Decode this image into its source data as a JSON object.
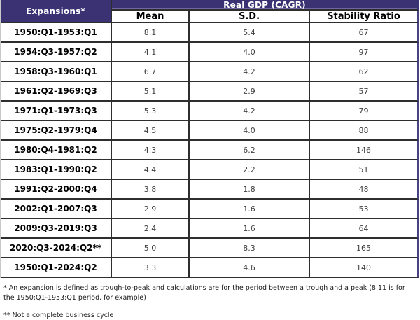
{
  "table": {
    "corner_header": "Expansions*",
    "group_header": "Real GDP (CAGR)",
    "columns": [
      "Mean",
      "S.D.",
      "Stability Ratio"
    ],
    "rows": [
      {
        "period": "1950:Q1-1953:Q1",
        "mean": "8.1",
        "sd": "5.4",
        "stability": "67"
      },
      {
        "period": "1954:Q3-1957:Q2",
        "mean": "4.1",
        "sd": "4.0",
        "stability": "97"
      },
      {
        "period": "1958:Q3-1960:Q1",
        "mean": "6.7",
        "sd": "4.2",
        "stability": "62"
      },
      {
        "period": "1961:Q2-1969:Q3",
        "mean": "5.1",
        "sd": "2.9",
        "stability": "57"
      },
      {
        "period": "1971:Q1-1973:Q3",
        "mean": "5.3",
        "sd": "4.2",
        "stability": "79"
      },
      {
        "period": "1975:Q2-1979:Q4",
        "mean": "4.5",
        "sd": "4.0",
        "stability": "88"
      },
      {
        "period": "1980:Q4-1981:Q2",
        "mean": "4.3",
        "sd": "6.2",
        "stability": "146"
      },
      {
        "period": "1983:Q1-1990:Q2",
        "mean": "4.4",
        "sd": "2.2",
        "stability": "51"
      },
      {
        "period": "1991:Q2-2000:Q4",
        "mean": "3.8",
        "sd": "1.8",
        "stability": "48"
      },
      {
        "period": "2002:Q1-2007:Q3",
        "mean": "2.9",
        "sd": "1.6",
        "stability": "53"
      },
      {
        "period": "2009:Q3-2019:Q3",
        "mean": "2.4",
        "sd": "1.6",
        "stability": "64"
      },
      {
        "period": "2020:Q3-2024:Q2**",
        "mean": "5.0",
        "sd": "8.3",
        "stability": "165"
      },
      {
        "period": "1950:Q1-2024:Q2",
        "mean": "3.3",
        "sd": "4.6",
        "stability": "140"
      }
    ]
  },
  "footnotes": {
    "first": "* An expansion is defined as trough-to-peak and calculations are for the period between a trough and a peak (8.11 is for the 1950:Q1-1953:Q1 period, for example)",
    "second": "** Not a complete business cycle"
  },
  "colors": {
    "header_bg": "#3b3273",
    "header_divider": "#6f68a0",
    "grid_line": "#2e2e2e",
    "value_text": "#3f3f3f"
  }
}
